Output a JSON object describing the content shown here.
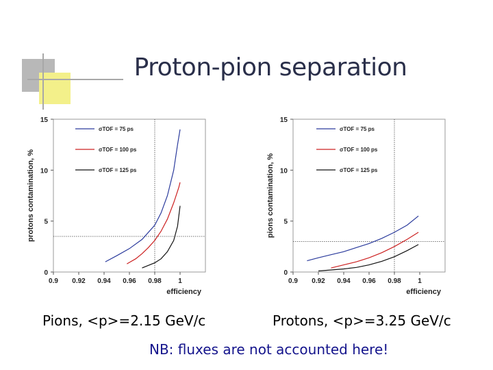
{
  "slide": {
    "title": "Proton-pion separation",
    "caption_left": "Pions, <p>=2.15 GeV/c",
    "caption_right": "Protons, <p>=3.25 GeV/c",
    "note": "NB: fluxes are not accounted here!",
    "colors": {
      "title": "#2a2f4a",
      "note": "#14148c",
      "deco_gray": "#b8b8b8",
      "deco_yellow": "#f3f08a"
    }
  },
  "chart_data": [
    {
      "type": "line",
      "ylabel": "protons contamination, %",
      "xlabel": "efficiency",
      "xlim": [
        0.9,
        1.02
      ],
      "ylim": [
        0,
        15
      ],
      "xticks": [
        "0.9",
        "0.92",
        "0.94",
        "0.96",
        "0.98",
        "1"
      ],
      "yticks": [
        "0",
        "5",
        "10",
        "15"
      ],
      "reference_lines": {
        "x": 0.98,
        "y": 3.5
      },
      "legend_position": "top-left",
      "series": [
        {
          "name": "σTOF = 75 ps",
          "color": "#2a3a9c",
          "points": [
            [
              0.941,
              1.0
            ],
            [
              0.95,
              1.6
            ],
            [
              0.96,
              2.3
            ],
            [
              0.97,
              3.2
            ],
            [
              0.98,
              4.6
            ],
            [
              0.985,
              5.8
            ],
            [
              0.99,
              7.5
            ],
            [
              0.995,
              10.0
            ],
            [
              0.998,
              12.5
            ],
            [
              1.0,
              14.0
            ]
          ]
        },
        {
          "name": "σTOF = 100 ps",
          "color": "#cc2020",
          "points": [
            [
              0.958,
              0.8
            ],
            [
              0.965,
              1.3
            ],
            [
              0.97,
              1.8
            ],
            [
              0.975,
              2.4
            ],
            [
              0.98,
              3.1
            ],
            [
              0.985,
              4.0
            ],
            [
              0.99,
              5.2
            ],
            [
              0.995,
              6.8
            ],
            [
              0.999,
              8.3
            ],
            [
              1.0,
              8.8
            ]
          ]
        },
        {
          "name": "σTOF = 125 ps",
          "color": "#111111",
          "points": [
            [
              0.97,
              0.4
            ],
            [
              0.98,
              0.9
            ],
            [
              0.985,
              1.3
            ],
            [
              0.99,
              2.0
            ],
            [
              0.995,
              3.1
            ],
            [
              0.998,
              4.5
            ],
            [
              1.0,
              6.5
            ]
          ]
        }
      ]
    },
    {
      "type": "line",
      "ylabel": "pions contamination, %",
      "xlabel": "efficiency",
      "xlim": [
        0.9,
        1.02
      ],
      "ylim": [
        0,
        15
      ],
      "xticks": [
        "0.9",
        "0.92",
        "0.94",
        "0.96",
        "0.98",
        "1"
      ],
      "yticks": [
        "0",
        "5",
        "10",
        "15"
      ],
      "reference_lines": {
        "x": 0.98,
        "y": 3.0
      },
      "legend_position": "top-right",
      "series": [
        {
          "name": "σTOF = 75 ps",
          "color": "#2a3a9c",
          "points": [
            [
              0.911,
              1.1
            ],
            [
              0.92,
              1.4
            ],
            [
              0.93,
              1.7
            ],
            [
              0.94,
              2.0
            ],
            [
              0.95,
              2.4
            ],
            [
              0.96,
              2.8
            ],
            [
              0.97,
              3.3
            ],
            [
              0.98,
              3.9
            ],
            [
              0.99,
              4.6
            ],
            [
              0.999,
              5.5
            ]
          ]
        },
        {
          "name": "σTOF = 100 ps",
          "color": "#cc2020",
          "points": [
            [
              0.93,
              0.4
            ],
            [
              0.94,
              0.7
            ],
            [
              0.95,
              1.0
            ],
            [
              0.96,
              1.4
            ],
            [
              0.97,
              1.9
            ],
            [
              0.98,
              2.5
            ],
            [
              0.99,
              3.2
            ],
            [
              0.999,
              3.9
            ]
          ]
        },
        {
          "name": "σTOF = 125 ps",
          "color": "#111111",
          "points": [
            [
              0.92,
              0.1
            ],
            [
              0.94,
              0.3
            ],
            [
              0.95,
              0.45
            ],
            [
              0.96,
              0.7
            ],
            [
              0.97,
              1.05
            ],
            [
              0.98,
              1.5
            ],
            [
              0.99,
              2.1
            ],
            [
              0.999,
              2.7
            ]
          ]
        }
      ]
    }
  ]
}
